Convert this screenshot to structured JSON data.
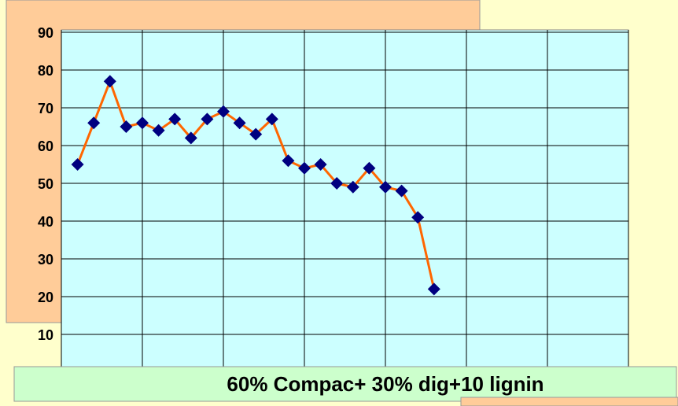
{
  "chart_data": {
    "type": "line",
    "title": "60% Compac+ 30% dig+10 lignin",
    "x": [
      1,
      2,
      3,
      4,
      5,
      6,
      7,
      8,
      9,
      10,
      11,
      12,
      13,
      14,
      15,
      16,
      17,
      18,
      19,
      20,
      21,
      22,
      23
    ],
    "series": [
      {
        "name": "",
        "color": "#ff6600",
        "marker_color": "#000080",
        "values": [
          55,
          66,
          77,
          65,
          66,
          64,
          67,
          62,
          67,
          69,
          66,
          63,
          67,
          56,
          54,
          55,
          50,
          49,
          54,
          49,
          48,
          41,
          22
        ]
      }
    ],
    "xlim": [
      0,
      35
    ],
    "xticks": [
      0,
      5,
      10,
      15,
      20,
      25,
      30,
      35
    ],
    "ylim": [
      0,
      90
    ],
    "yticks": [
      10,
      20,
      30,
      40,
      50,
      60,
      70,
      80,
      90
    ],
    "grid": true
  }
}
